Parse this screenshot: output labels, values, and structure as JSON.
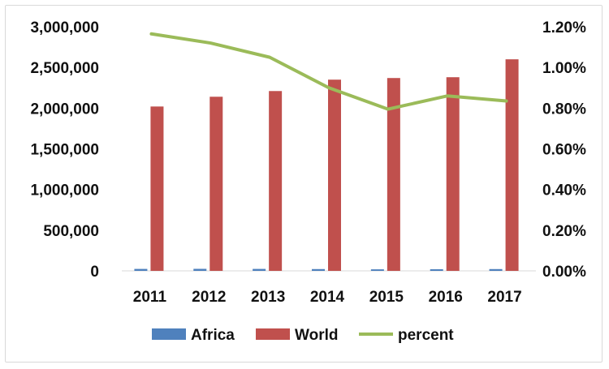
{
  "chart_data": {
    "type": "bar",
    "title": "",
    "categories": [
      "2011",
      "2012",
      "2013",
      "2014",
      "2015",
      "2016",
      "2017"
    ],
    "series": [
      {
        "name": "Africa",
        "type": "bar",
        "axis": "left",
        "color": "#4f81bd",
        "values": [
          24000,
          25000,
          24000,
          22000,
          19000,
          20000,
          22000
        ]
      },
      {
        "name": "World",
        "type": "bar",
        "axis": "left",
        "color": "#c0504d",
        "values": [
          2020000,
          2140000,
          2210000,
          2350000,
          2370000,
          2380000,
          2600000
        ]
      },
      {
        "name": "percent",
        "type": "line",
        "axis": "right",
        "color": "#9bbb59",
        "values": [
          1.165,
          1.12,
          1.05,
          0.9,
          0.795,
          0.86,
          0.835
        ]
      }
    ],
    "y_left": {
      "min": 0,
      "max": 3000000,
      "ticks": [
        0,
        500000,
        1000000,
        1500000,
        2000000,
        2500000,
        3000000
      ],
      "tick_labels": [
        "0",
        "500,000",
        "1,000,000",
        "1,500,000",
        "2,000,000",
        "2,500,000",
        "3,000,000"
      ]
    },
    "y_right": {
      "min": 0,
      "max": 1.2,
      "ticks": [
        0,
        0.2,
        0.4,
        0.6,
        0.8,
        1.0,
        1.2
      ],
      "tick_labels": [
        "0.00%",
        "0.20%",
        "0.40%",
        "0.60%",
        "0.80%",
        "1.00%",
        "1.20%"
      ]
    },
    "grid": false,
    "legend_position": "bottom"
  }
}
